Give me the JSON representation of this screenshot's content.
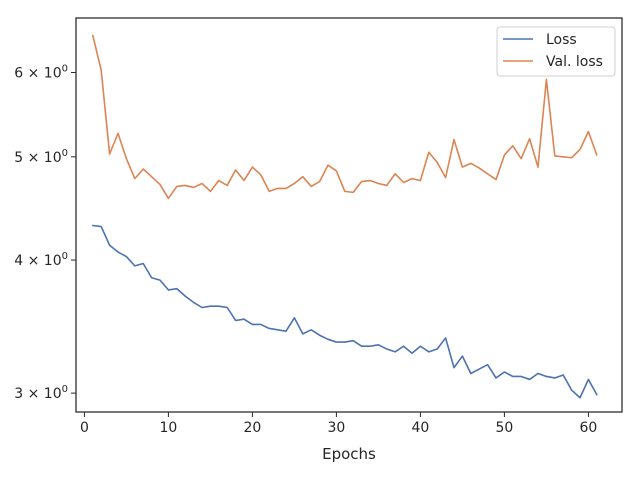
{
  "chart_data": {
    "type": "line",
    "title": "",
    "xlabel": "Epochs",
    "ylabel": "",
    "yscale": "log",
    "xlim": [
      -1,
      64
    ],
    "ylim": [
      2.88,
      6.75
    ],
    "grid": false,
    "legend_position": "top-right",
    "x_ticks": [
      0,
      10,
      20,
      30,
      40,
      50,
      60
    ],
    "x_tick_labels": [
      "0",
      "10",
      "20",
      "30",
      "40",
      "50",
      "60"
    ],
    "y_ticks": [
      3,
      4,
      5,
      6
    ],
    "y_tick_labels": [
      "3 × 10^0",
      "4 × 10^0",
      "5 × 10^0",
      "6 × 10^0"
    ],
    "x": [
      1,
      2,
      3,
      4,
      5,
      6,
      7,
      8,
      9,
      10,
      11,
      12,
      13,
      14,
      15,
      16,
      17,
      18,
      19,
      20,
      21,
      22,
      23,
      24,
      25,
      26,
      27,
      28,
      29,
      30,
      31,
      32,
      33,
      34,
      35,
      36,
      37,
      38,
      39,
      40,
      41,
      42,
      43,
      44,
      45,
      46,
      47,
      48,
      49,
      50,
      51,
      52,
      53,
      54,
      55,
      56,
      57,
      58,
      59,
      60,
      61
    ],
    "series": [
      {
        "name": "Loss",
        "color": "#4c72b0",
        "values": [
          4.31,
          4.3,
          4.13,
          4.07,
          4.03,
          3.95,
          3.97,
          3.85,
          3.83,
          3.75,
          3.76,
          3.7,
          3.65,
          3.61,
          3.62,
          3.62,
          3.61,
          3.51,
          3.52,
          3.48,
          3.48,
          3.45,
          3.44,
          3.43,
          3.53,
          3.41,
          3.44,
          3.4,
          3.37,
          3.35,
          3.35,
          3.36,
          3.32,
          3.32,
          3.33,
          3.3,
          3.28,
          3.32,
          3.27,
          3.32,
          3.28,
          3.3,
          3.38,
          3.17,
          3.25,
          3.13,
          3.16,
          3.19,
          3.1,
          3.14,
          3.11,
          3.11,
          3.09,
          3.13,
          3.11,
          3.1,
          3.12,
          3.02,
          2.97,
          3.09,
          2.99
        ]
      },
      {
        "name": "Val. loss",
        "color": "#dd8452",
        "values": [
          6.5,
          6.03,
          5.03,
          5.26,
          4.98,
          4.77,
          4.87,
          4.79,
          4.71,
          4.57,
          4.69,
          4.7,
          4.68,
          4.72,
          4.64,
          4.75,
          4.7,
          4.86,
          4.75,
          4.89,
          4.81,
          4.64,
          4.67,
          4.67,
          4.72,
          4.79,
          4.69,
          4.74,
          4.91,
          4.85,
          4.64,
          4.63,
          4.74,
          4.75,
          4.72,
          4.7,
          4.82,
          4.73,
          4.77,
          4.75,
          5.05,
          4.94,
          4.78,
          5.19,
          4.89,
          4.93,
          4.88,
          4.82,
          4.76,
          5.02,
          5.12,
          4.98,
          5.2,
          4.89,
          5.91,
          5.01,
          5.0,
          4.99,
          5.08,
          5.28,
          5.02
        ]
      }
    ]
  }
}
